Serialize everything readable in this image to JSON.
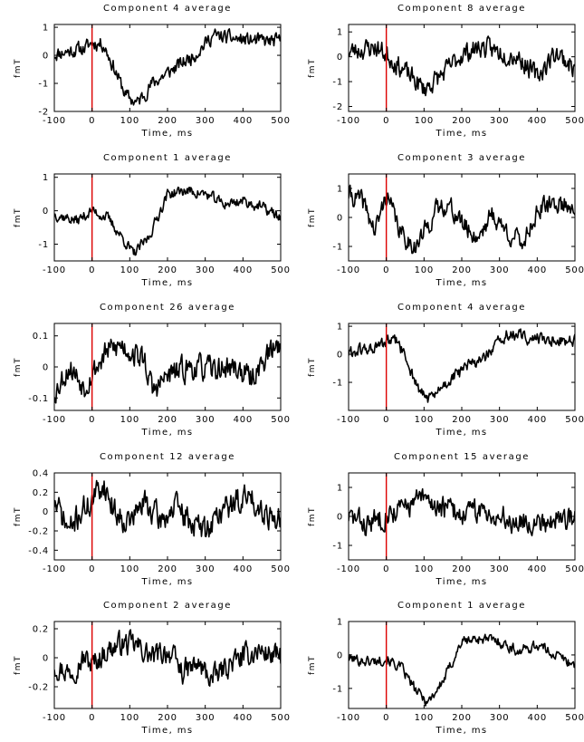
{
  "chart_data": [
    {
      "type": "line",
      "title": "Component 4 average",
      "xlabel": "Time, ms",
      "ylabel": "fmT",
      "xlim": [
        -100,
        500
      ],
      "ylim": [
        -2,
        1.1
      ],
      "xticks": [
        "-100",
        "0",
        "100",
        "200",
        "300",
        "400",
        "500"
      ],
      "yticks": [
        {
          "v": 1,
          "label": "1"
        },
        {
          "v": 0,
          "label": "0"
        },
        {
          "v": -1,
          "label": "-1"
        },
        {
          "v": -2,
          "label": "-2"
        }
      ],
      "stimulus_ms": 0,
      "stimulus_color": "#dd0000",
      "line_color": "#000000",
      "noise": 0.22,
      "seed": 11,
      "shape": [
        [
          -100,
          0.05
        ],
        [
          -20,
          0.25
        ],
        [
          0,
          0.45
        ],
        [
          30,
          0.4
        ],
        [
          60,
          -0.5
        ],
        [
          90,
          -1.45
        ],
        [
          120,
          -1.7
        ],
        [
          160,
          -1.0
        ],
        [
          220,
          -0.45
        ],
        [
          270,
          0.0
        ],
        [
          320,
          0.7
        ],
        [
          400,
          0.55
        ],
        [
          460,
          0.5
        ],
        [
          500,
          0.5
        ]
      ]
    },
    {
      "type": "line",
      "title": "Component 8 average",
      "xlabel": "Time, ms",
      "ylabel": "fmT",
      "xlim": [
        -100,
        500
      ],
      "ylim": [
        -2.2,
        1.3
      ],
      "xticks": [
        "-100",
        "0",
        "100",
        "200",
        "300",
        "400",
        "500"
      ],
      "yticks": [
        {
          "v": 1,
          "label": "1"
        },
        {
          "v": 0,
          "label": "0"
        },
        {
          "v": -1,
          "label": "-1"
        },
        {
          "v": -2,
          "label": "-2"
        }
      ],
      "stimulus_ms": 0,
      "stimulus_color": "#dd0000",
      "line_color": "#000000",
      "noise": 0.35,
      "seed": 23,
      "shape": [
        [
          -100,
          0.2
        ],
        [
          -30,
          0.4
        ],
        [
          0,
          0.1
        ],
        [
          50,
          -0.6
        ],
        [
          100,
          -1.3
        ],
        [
          150,
          -0.7
        ],
        [
          200,
          0.1
        ],
        [
          250,
          0.4
        ],
        [
          300,
          0.2
        ],
        [
          350,
          0.0
        ],
        [
          400,
          -0.8
        ],
        [
          450,
          0.2
        ],
        [
          500,
          -0.5
        ]
      ]
    },
    {
      "type": "line",
      "title": "Component 1 average",
      "xlabel": "Time, ms",
      "ylabel": "fmT",
      "xlim": [
        -100,
        500
      ],
      "ylim": [
        -1.5,
        1.1
      ],
      "xticks": [
        "-100",
        "0",
        "100",
        "200",
        "300",
        "400",
        "500"
      ],
      "yticks": [
        {
          "v": 1,
          "label": "1"
        },
        {
          "v": 0,
          "label": "0"
        },
        {
          "v": -1,
          "label": "-1"
        }
      ],
      "stimulus_ms": 0,
      "stimulus_color": "#dd0000",
      "line_color": "#000000",
      "noise": 0.14,
      "seed": 37,
      "shape": [
        [
          -100,
          -0.1
        ],
        [
          -40,
          -0.3
        ],
        [
          0,
          0.0
        ],
        [
          40,
          -0.2
        ],
        [
          80,
          -0.8
        ],
        [
          110,
          -1.3
        ],
        [
          150,
          -0.8
        ],
        [
          200,
          0.5
        ],
        [
          250,
          0.6
        ],
        [
          300,
          0.5
        ],
        [
          350,
          0.2
        ],
        [
          400,
          0.3
        ],
        [
          450,
          0.1
        ],
        [
          500,
          -0.2
        ]
      ]
    },
    {
      "type": "line",
      "title": "Component 3 average",
      "xlabel": "Time, ms",
      "ylabel": "fmT",
      "xlim": [
        -100,
        500
      ],
      "ylim": [
        -1.5,
        1.5
      ],
      "xticks": [
        "-100",
        "0",
        "100",
        "200",
        "300",
        "400",
        "500"
      ],
      "yticks": [
        {
          "v": 1,
          "label": "1"
        },
        {
          "v": 0,
          "label": "0"
        },
        {
          "v": -1,
          "label": "-1"
        }
      ],
      "stimulus_ms": 0,
      "stimulus_color": "#dd0000",
      "line_color": "#000000",
      "noise": 0.3,
      "seed": 41,
      "shape": [
        [
          -100,
          0.8
        ],
        [
          -60,
          0.5
        ],
        [
          -30,
          -0.5
        ],
        [
          0,
          0.8
        ],
        [
          40,
          -0.6
        ],
        [
          80,
          -1.0
        ],
        [
          130,
          0.2
        ],
        [
          160,
          0.5
        ],
        [
          200,
          -0.2
        ],
        [
          240,
          -0.7
        ],
        [
          280,
          0.1
        ],
        [
          320,
          -0.5
        ],
        [
          360,
          -0.9
        ],
        [
          400,
          0.2
        ],
        [
          450,
          0.5
        ],
        [
          500,
          0.4
        ]
      ]
    },
    {
      "type": "line",
      "title": "Component 26 average",
      "xlabel": "Time, ms",
      "ylabel": "fmT",
      "xlim": [
        -100,
        500
      ],
      "ylim": [
        -0.14,
        0.14
      ],
      "xticks": [
        "-100",
        "0",
        "100",
        "200",
        "300",
        "400",
        "500"
      ],
      "yticks": [
        {
          "v": 0.1,
          "label": "0.1"
        },
        {
          "v": 0,
          "label": "0"
        },
        {
          "v": -0.1,
          "label": "-0.1"
        }
      ],
      "stimulus_ms": 0,
      "stimulus_color": "#dd0000",
      "line_color": "#000000",
      "noise": 0.035,
      "seed": 53,
      "shape": [
        [
          -100,
          -0.08
        ],
        [
          -60,
          0.0
        ],
        [
          -20,
          -0.06
        ],
        [
          0,
          -0.02
        ],
        [
          40,
          0.05
        ],
        [
          80,
          0.07
        ],
        [
          140,
          0.02
        ],
        [
          160,
          -0.08
        ],
        [
          200,
          -0.03
        ],
        [
          260,
          0.0
        ],
        [
          320,
          -0.01
        ],
        [
          380,
          0.0
        ],
        [
          420,
          -0.04
        ],
        [
          460,
          0.03
        ],
        [
          500,
          0.08
        ]
      ]
    },
    {
      "type": "line",
      "title": "Component 4 average",
      "xlabel": "Time, ms",
      "ylabel": "fmT",
      "xlim": [
        -100,
        500
      ],
      "ylim": [
        -2,
        1.1
      ],
      "xticks": [
        "-100",
        "0",
        "100",
        "200",
        "300",
        "400",
        "500"
      ],
      "yticks": [
        {
          "v": 1,
          "label": "1"
        },
        {
          "v": 0,
          "label": "0"
        },
        {
          "v": -1,
          "label": "-1"
        }
      ],
      "stimulus_ms": 0,
      "stimulus_color": "#dd0000",
      "line_color": "#000000",
      "noise": 0.2,
      "seed": 61,
      "shape": [
        [
          -100,
          0.05
        ],
        [
          -20,
          0.25
        ],
        [
          0,
          0.45
        ],
        [
          30,
          0.45
        ],
        [
          60,
          -0.4
        ],
        [
          90,
          -1.4
        ],
        [
          120,
          -1.6
        ],
        [
          160,
          -1.0
        ],
        [
          220,
          -0.4
        ],
        [
          270,
          0.0
        ],
        [
          320,
          0.7
        ],
        [
          400,
          0.55
        ],
        [
          460,
          0.5
        ],
        [
          500,
          0.5
        ]
      ]
    },
    {
      "type": "line",
      "title": "Component 12 average",
      "xlabel": "Time, ms",
      "ylabel": "fmT",
      "xlim": [
        -100,
        500
      ],
      "ylim": [
        -0.5,
        0.4
      ],
      "xticks": [
        "-100",
        "0",
        "100",
        "200",
        "300",
        "400",
        "500"
      ],
      "yticks": [
        {
          "v": 0.4,
          "label": "0.4"
        },
        {
          "v": 0.2,
          "label": "0.2"
        },
        {
          "v": 0,
          "label": "0"
        },
        {
          "v": -0.2,
          "label": "-0.2"
        },
        {
          "v": -0.4,
          "label": "-0.4"
        }
      ],
      "stimulus_ms": 0,
      "stimulus_color": "#dd0000",
      "line_color": "#000000",
      "noise": 0.12,
      "seed": 71,
      "shape": [
        [
          -100,
          0.1
        ],
        [
          -60,
          -0.2
        ],
        [
          -30,
          0.0
        ],
        [
          0,
          0.1
        ],
        [
          30,
          0.3
        ],
        [
          60,
          0.0
        ],
        [
          100,
          -0.1
        ],
        [
          140,
          0.1
        ],
        [
          180,
          -0.1
        ],
        [
          220,
          0.05
        ],
        [
          260,
          -0.1
        ],
        [
          300,
          -0.2
        ],
        [
          340,
          0.0
        ],
        [
          380,
          0.1
        ],
        [
          420,
          0.15
        ],
        [
          460,
          0.0
        ],
        [
          500,
          -0.1
        ]
      ]
    },
    {
      "type": "line",
      "title": "Component 15 average",
      "xlabel": "Time, ms",
      "ylabel": "fmT",
      "xlim": [
        -100,
        500
      ],
      "ylim": [
        -1.5,
        1.5
      ],
      "xticks": [
        "-100",
        "0",
        "100",
        "200",
        "300",
        "400",
        "500"
      ],
      "yticks": [
        {
          "v": 1,
          "label": "1"
        },
        {
          "v": 0,
          "label": "0"
        },
        {
          "v": -1,
          "label": "-1"
        }
      ],
      "stimulus_ms": 0,
      "stimulus_color": "#dd0000",
      "line_color": "#000000",
      "noise": 0.35,
      "seed": 83,
      "shape": [
        [
          -100,
          0.0
        ],
        [
          -50,
          -0.3
        ],
        [
          0,
          0.1
        ],
        [
          50,
          0.3
        ],
        [
          90,
          0.6
        ],
        [
          130,
          0.4
        ],
        [
          200,
          0.1
        ],
        [
          260,
          0.2
        ],
        [
          320,
          -0.1
        ],
        [
          380,
          -0.2
        ],
        [
          440,
          -0.1
        ],
        [
          500,
          0.0
        ]
      ]
    },
    {
      "type": "line",
      "title": "Component 2 average",
      "xlabel": "Time, ms",
      "ylabel": "fmT",
      "xlim": [
        -100,
        500
      ],
      "ylim": [
        -0.35,
        0.25
      ],
      "xticks": [
        "-100",
        "0",
        "100",
        "200",
        "300",
        "400",
        "500"
      ],
      "yticks": [
        {
          "v": 0.2,
          "label": "0.2"
        },
        {
          "v": 0,
          "label": "0"
        },
        {
          "v": -0.2,
          "label": "-0.2"
        }
      ],
      "stimulus_ms": 0,
      "stimulus_color": "#dd0000",
      "line_color": "#000000",
      "noise": 0.07,
      "seed": 97,
      "shape": [
        [
          -100,
          -0.05
        ],
        [
          -60,
          -0.1
        ],
        [
          -20,
          0.0
        ],
        [
          0,
          -0.05
        ],
        [
          40,
          0.05
        ],
        [
          80,
          0.1
        ],
        [
          120,
          0.08
        ],
        [
          160,
          0.0
        ],
        [
          200,
          0.05
        ],
        [
          240,
          -0.1
        ],
        [
          280,
          -0.05
        ],
        [
          320,
          -0.15
        ],
        [
          360,
          -0.05
        ],
        [
          400,
          0.0
        ],
        [
          440,
          0.05
        ],
        [
          500,
          0.0
        ]
      ]
    },
    {
      "type": "line",
      "title": "Component 1 average",
      "xlabel": "Time, ms",
      "ylabel": "fmT",
      "xlim": [
        -100,
        500
      ],
      "ylim": [
        -1.6,
        1.0
      ],
      "xticks": [
        "-100",
        "0",
        "100",
        "200",
        "300",
        "400",
        "500"
      ],
      "yticks": [
        {
          "v": 1,
          "label": "1"
        },
        {
          "v": 0,
          "label": "0"
        },
        {
          "v": -1,
          "label": "-1"
        }
      ],
      "stimulus_ms": 0,
      "stimulus_color": "#dd0000",
      "line_color": "#000000",
      "noise": 0.14,
      "seed": 101,
      "shape": [
        [
          -100,
          -0.1
        ],
        [
          -40,
          -0.2
        ],
        [
          0,
          -0.1
        ],
        [
          40,
          -0.4
        ],
        [
          80,
          -1.1
        ],
        [
          110,
          -1.4
        ],
        [
          150,
          -0.8
        ],
        [
          200,
          0.4
        ],
        [
          250,
          0.5
        ],
        [
          300,
          0.4
        ],
        [
          350,
          0.1
        ],
        [
          400,
          0.3
        ],
        [
          450,
          0.0
        ],
        [
          500,
          -0.3
        ]
      ]
    }
  ]
}
